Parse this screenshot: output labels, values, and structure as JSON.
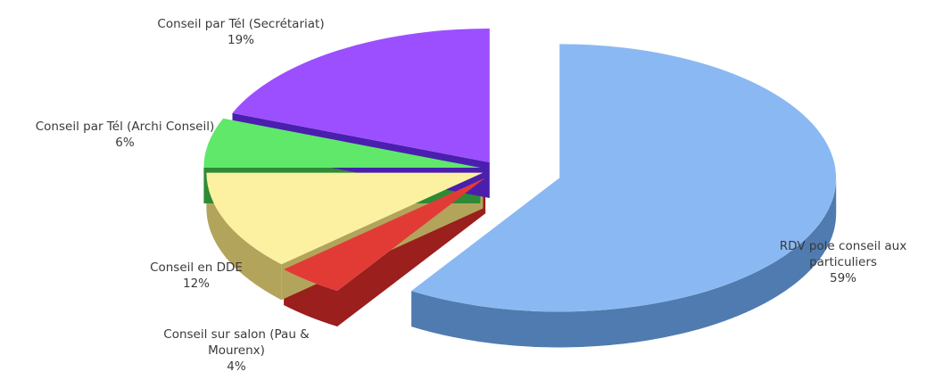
{
  "chart_data": {
    "type": "pie",
    "style": "3d-exploded",
    "slices": [
      {
        "label": "RDV pole conseil aux particuliers",
        "label_lines": [
          "RDV pole conseil aux",
          "particuliers"
        ],
        "pct_text": "59%",
        "value": 59,
        "color": "#8ab8f2",
        "side_color": "#4f7bb0"
      },
      {
        "label": "Conseil sur salon (Pau & Mourenx)",
        "label_lines": [
          "Conseil sur salon (Pau &",
          "Mourenx)"
        ],
        "pct_text": "4%",
        "value": 4,
        "color": "#e23b36",
        "side_color": "#9a1f1d"
      },
      {
        "label": "Conseil en DDE",
        "label_lines": [
          "Conseil en DDE"
        ],
        "pct_text": "12%",
        "value": 12,
        "color": "#fbf1a0",
        "side_color": "#b3a45c"
      },
      {
        "label": "Conseil par Tél (Archi Conseil)",
        "label_lines": [
          "Conseil par Tél (Archi Conseil)"
        ],
        "pct_text": "6%",
        "value": 6,
        "color": "#5fe86a",
        "side_color": "#2f8a36"
      },
      {
        "label": "Conseil par Tél (Secrétariat)",
        "label_lines": [
          "Conseil par Tél (Secrétariat)"
        ],
        "pct_text": "19%",
        "value": 19,
        "color": "#9c4fff",
        "side_color": "#4a1fae"
      }
    ]
  }
}
